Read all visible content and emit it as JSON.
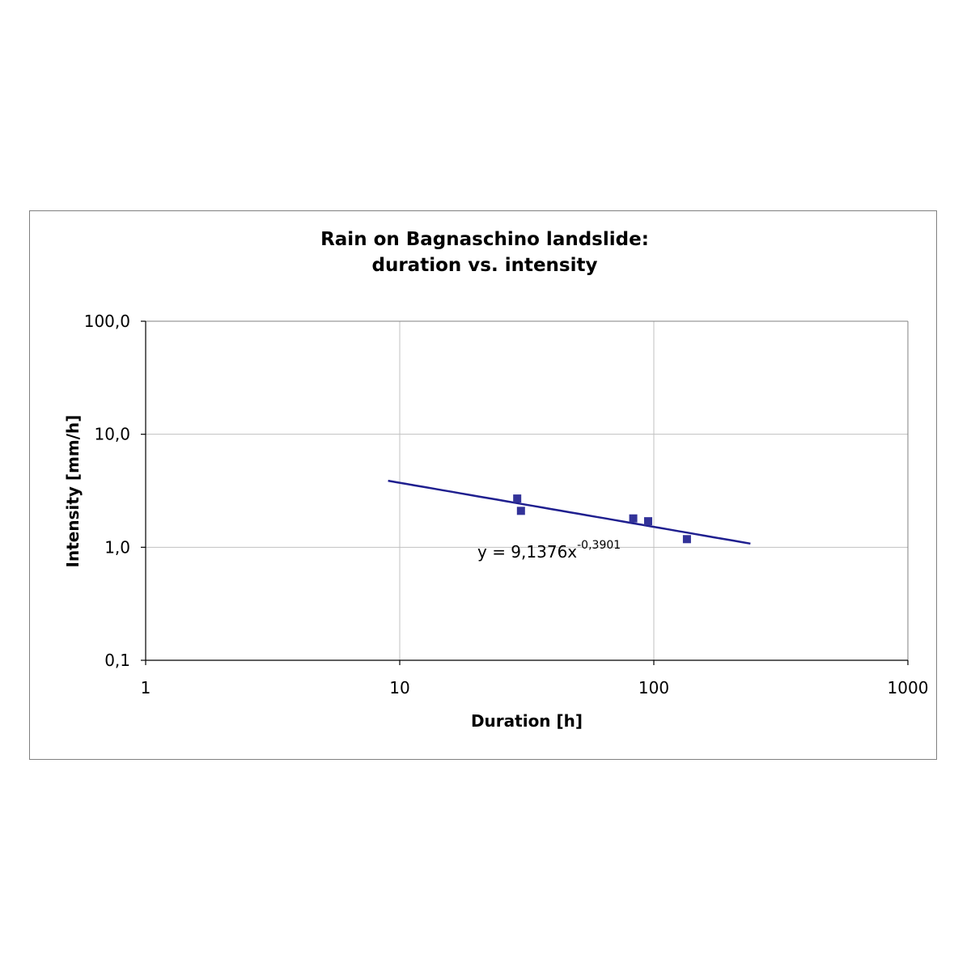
{
  "chart_data": {
    "type": "scatter",
    "title": [
      "Rain on Bagnaschino landslide:",
      "duration vs. intensity"
    ],
    "xlabel": "Duration [h]",
    "ylabel": "Intensity [mm/h]",
    "x_scale": "log",
    "y_scale": "log",
    "xlim": [
      1,
      1000
    ],
    "ylim": [
      0.1,
      100
    ],
    "x_ticks": [
      1,
      10,
      100,
      1000
    ],
    "x_tick_labels": [
      "1",
      "10",
      "100",
      "1000"
    ],
    "y_ticks": [
      0.1,
      1,
      10,
      100
    ],
    "y_tick_labels": [
      "0,1",
      "1,0",
      "10,0",
      "100,0"
    ],
    "grid": true,
    "series": [
      {
        "marker": "square",
        "color": "#333399",
        "points": [
          {
            "x": 29,
            "y": 2.7
          },
          {
            "x": 30,
            "y": 2.1
          },
          {
            "x": 83,
            "y": 1.8
          },
          {
            "x": 95,
            "y": 1.7
          },
          {
            "x": 135,
            "y": 1.18
          }
        ]
      }
    ],
    "trendline": {
      "type": "power",
      "a": 9.1376,
      "b": -0.3901,
      "x_range": [
        9,
        240
      ],
      "color": "#1f1f8f",
      "label_base": "y = 9,1376x",
      "label_exp": "-0,3901"
    }
  }
}
